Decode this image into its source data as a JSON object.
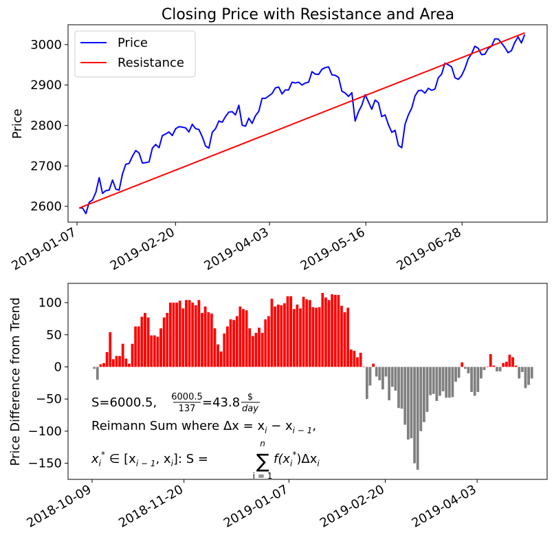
{
  "chart_data": [
    {
      "type": "line",
      "title": "Closing Price with Resistance and Area",
      "xlabel": "",
      "ylabel": "Price",
      "xlim": [
        "2019-01-03",
        "2019-08-05"
      ],
      "ylim": [
        2561,
        3049
      ],
      "xticks": [
        "2019-01-07",
        "2019-02-20",
        "2019-04-03",
        "2019-05-16",
        "2019-06-28"
      ],
      "yticks": [
        2600,
        2700,
        2800,
        2900,
        3000
      ],
      "legend": {
        "position": "top-left",
        "entries": [
          "Price",
          "Resistance"
        ]
      },
      "grid": false,
      "series": [
        {
          "name": "Price",
          "color": "#0000ff",
          "start_date": "2019-01-08",
          "end_date": "2019-07-26",
          "values": [
            2596,
            2596,
            2582,
            2610,
            2616,
            2635,
            2671,
            2632,
            2639,
            2640,
            2665,
            2643,
            2640,
            2680,
            2704,
            2706,
            2724,
            2738,
            2732,
            2707,
            2708,
            2710,
            2744,
            2753,
            2745,
            2775,
            2779,
            2784,
            2775,
            2792,
            2797,
            2796,
            2794,
            2784,
            2803,
            2792,
            2790,
            2772,
            2749,
            2744,
            2783,
            2792,
            2811,
            2808,
            2822,
            2833,
            2834,
            2826,
            2850,
            2801,
            2798,
            2818,
            2805,
            2824,
            2835,
            2867,
            2867,
            2873,
            2879,
            2893,
            2895,
            2878,
            2888,
            2888,
            2907,
            2905,
            2907,
            2900,
            2905,
            2907,
            2933,
            2927,
            2926,
            2939,
            2943,
            2945,
            2925,
            2924,
            2919,
            2885,
            2880,
            2872,
            2881,
            2811,
            2834,
            2850,
            2876,
            2858,
            2840,
            2863,
            2856,
            2822,
            2826,
            2802,
            2783,
            2788,
            2751,
            2745,
            2803,
            2826,
            2843,
            2873,
            2886,
            2887,
            2880,
            2892,
            2887,
            2890,
            2918,
            2927,
            2954,
            2950,
            2945,
            2918,
            2914,
            2923,
            2941,
            2965,
            2977,
            2996,
            2991,
            2975,
            2976,
            2990,
            2996,
            3014,
            3014,
            3004,
            2993,
            2980,
            2985,
            3005,
            3019,
            3004,
            3025
          ]
        },
        {
          "name": "Resistance",
          "color": "#ff0000",
          "x": [
            "2019-01-08",
            "2019-07-26"
          ],
          "values": [
            2596,
            3029
          ]
        }
      ]
    },
    {
      "type": "bar",
      "title": "",
      "xlabel": "",
      "ylabel": "Price Difference from Trend",
      "xlim": [
        "2018-09-28",
        "2019-05-05"
      ],
      "ylim": [
        -175,
        130
      ],
      "xticks": [
        "2018-10-09",
        "2018-11-20",
        "2019-01-07",
        "2019-02-20",
        "2019-04-03"
      ],
      "yticks": [
        -150,
        -100,
        -50,
        0,
        50,
        100
      ],
      "grid": false,
      "positive_color": "#ff0000",
      "negative_color": "#808080",
      "start_date": "2018-10-10",
      "end_date": "2019-04-28",
      "values": [
        -3,
        -20,
        4,
        6,
        23,
        54,
        12,
        17,
        17,
        36,
        13,
        5,
        36,
        63,
        63,
        78,
        84,
        77,
        49,
        49,
        47,
        60,
        77,
        84,
        100,
        100,
        100,
        103,
        91,
        104,
        104,
        100,
        96,
        104,
        84,
        94,
        85,
        83,
        60,
        35,
        24,
        52,
        63,
        74,
        73,
        79,
        94,
        90,
        88,
        60,
        48,
        53,
        61,
        53,
        74,
        79,
        106,
        94,
        97,
        96,
        99,
        110,
        110,
        90,
        97,
        91,
        109,
        105,
        104,
        93,
        92,
        93,
        115,
        108,
        104,
        113,
        112,
        112,
        95,
        85,
        92,
        27,
        25,
        15,
        22,
        0,
        -50,
        -29,
        5,
        -15,
        -21,
        -35,
        -15,
        -52,
        -31,
        -37,
        -64,
        -65,
        -90,
        -113,
        -111,
        -150,
        -160,
        -100,
        -86,
        -70,
        -44,
        -42,
        -53,
        -45,
        -38,
        -48,
        -48,
        -47,
        -23,
        -17,
        7,
        -3,
        -10,
        -39,
        -45,
        -39,
        -18,
        -5,
        0,
        20,
        2,
        -7,
        -7,
        6,
        8,
        19,
        15,
        2,
        -18,
        -8,
        -33,
        -28,
        -18
      ]
    }
  ],
  "annotation": {
    "line1_prefix": "S=6000.5, ",
    "frac_num": "6000.5",
    "frac_den": "137",
    "line1_mid": "=43.8",
    "unit_num": "$",
    "unit_den": "day",
    "line2": "Reimann Sum where Δx = x",
    "line2_sub_i": "i",
    "line2_minus": " − x",
    "line2_sub_i1": "i − 1",
    "line2_end": ",",
    "line3_x": "x",
    "line3_sub_i": "i",
    "line3_star": "*",
    "line3_in": " ∈ [x",
    "line3_sub_i1": "i − 1",
    "line3_comma": ", x",
    "line3_sub_i2": "i",
    "line3_close": "]: S = ",
    "line3_sigma": "∑",
    "line3_sigma_top": "n",
    "line3_sigma_bottom": "i = 1",
    "line3_rest": "f(x",
    "line3_rest_sub": "i",
    "line3_rest_sup": "*",
    "line3_end": ")Δx",
    "line3_end_sub": "i"
  }
}
